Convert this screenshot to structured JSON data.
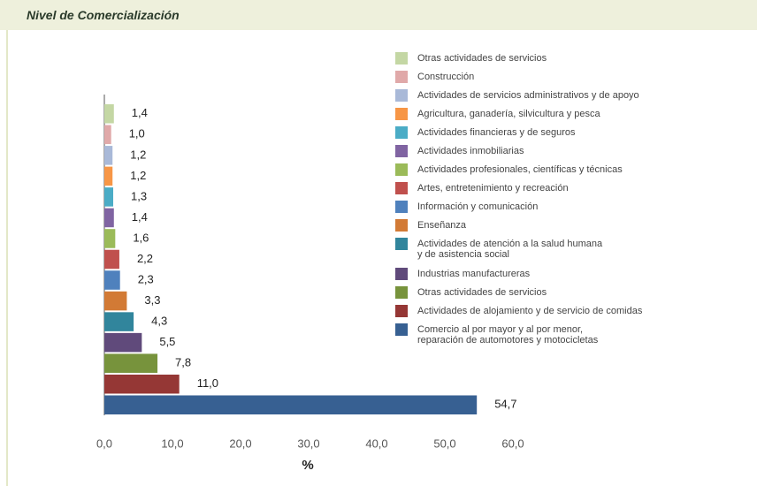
{
  "chart_data": {
    "type": "hbar",
    "title": "Nivel de Comercialización",
    "xlabel": "%",
    "categories": [
      "Otras actividades de servicios",
      "Construcción",
      "Actividades de servicios administrativos y de apoyo",
      "Agricultura, ganadería, silvicultura y pesca",
      "Actividades financieras y de seguros",
      "Actividades inmobiliarias",
      "Actividades profesionales, científicas y técnicas",
      "Artes, entretenimiento y recreación",
      "Información y comunicación",
      "Enseñanza",
      "Actividades de atención a la salud humana\ny de asistencia social",
      "Industrias manufactureras",
      "Otras actividades de servicios",
      "Actividades de alojamiento y de servicio de comidas",
      "Comercio al por mayor y al por menor,\nreparación de automotores y motocicletas"
    ],
    "values": [
      1.4,
      1.0,
      1.2,
      1.2,
      1.3,
      1.4,
      1.6,
      2.2,
      2.3,
      3.3,
      4.3,
      5.5,
      7.8,
      11.0,
      54.7
    ],
    "value_labels": [
      "1,4",
      "1,0",
      "1,2",
      "1,2",
      "1,3",
      "1,4",
      "1,6",
      "2,2",
      "2,3",
      "3,3",
      "4,3",
      "5,5",
      "7,8",
      "11,0",
      "54,7"
    ],
    "colors": [
      "#c4d7a4",
      "#e0a9a9",
      "#a9b9d8",
      "#f79646",
      "#4bacc6",
      "#8064a2",
      "#9bbb59",
      "#c0504d",
      "#4f81bd",
      "#d27a35",
      "#31859c",
      "#604a7b",
      "#77933c",
      "#953735",
      "#376092"
    ],
    "xlim": [
      0,
      60
    ],
    "xticks": [
      {
        "value": 0,
        "label": "0,0"
      },
      {
        "value": 10,
        "label": "10,0"
      },
      {
        "value": 20,
        "label": "20,0"
      },
      {
        "value": 30,
        "label": "30,0"
      },
      {
        "value": 40,
        "label": "40,0"
      },
      {
        "value": 50,
        "label": "50,0"
      },
      {
        "value": 60,
        "label": "60,0"
      }
    ],
    "legend": "top-right"
  }
}
